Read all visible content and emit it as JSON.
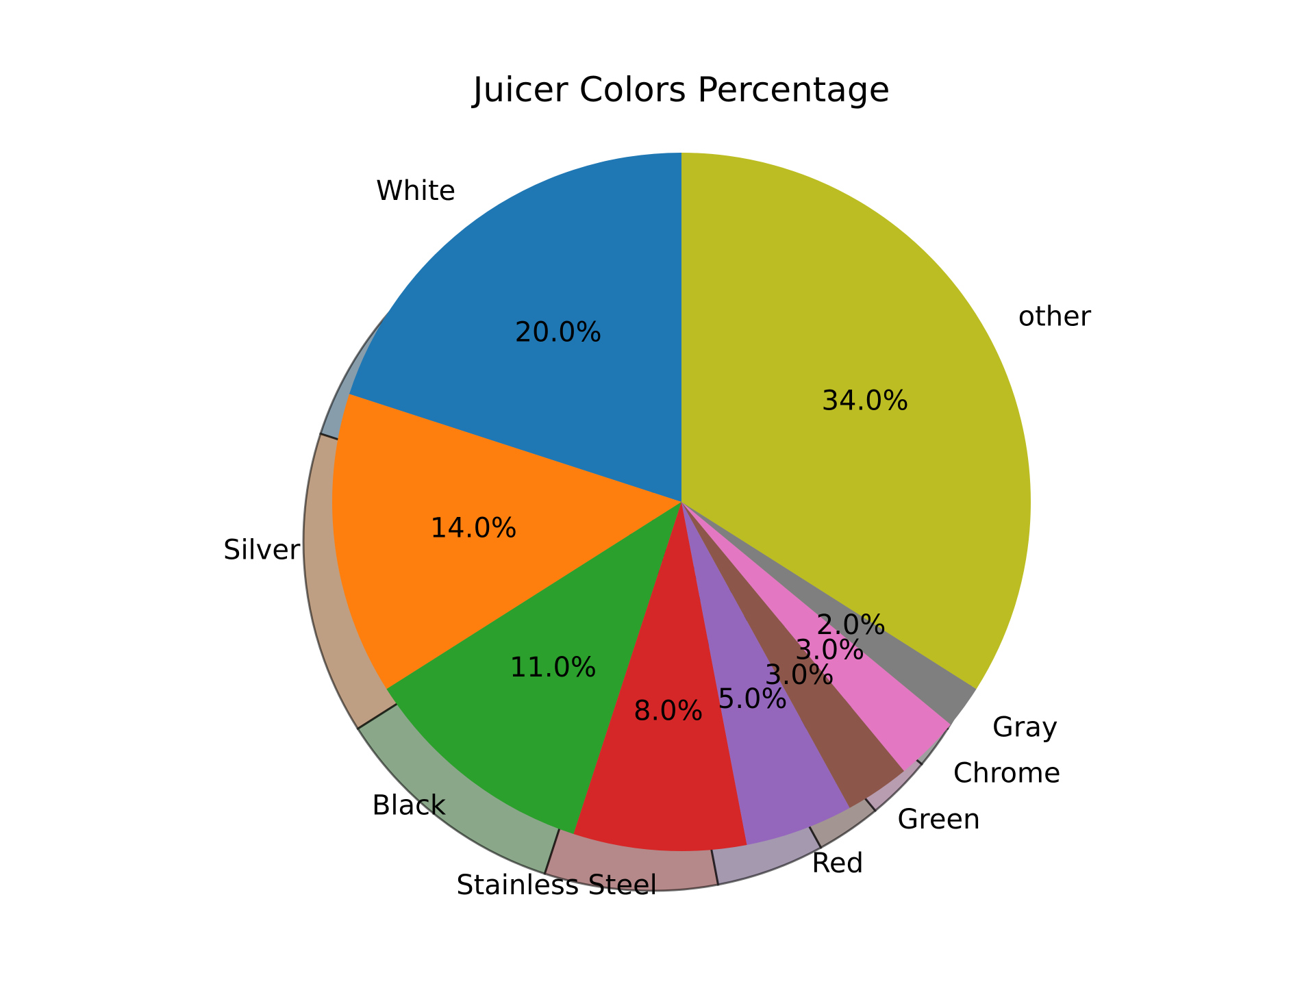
{
  "chart_data": {
    "type": "pie",
    "title": "Juicer Colors Percentage",
    "categories": [
      "White",
      "Silver",
      "Black",
      "Stainless Steel",
      "Red",
      "Green",
      "Chrome",
      "Gray",
      "other"
    ],
    "values": [
      20.0,
      14.0,
      11.0,
      8.0,
      5.0,
      3.0,
      3.0,
      2.0,
      34.0
    ],
    "percent_labels": [
      "20.0%",
      "14.0%",
      "11.0%",
      "8.0%",
      "5.0%",
      "3.0%",
      "3.0%",
      "2.0%",
      "34.0%"
    ],
    "colors": [
      "#1f77b4",
      "#ff7f0e",
      "#2ca02c",
      "#d62728",
      "#9467bd",
      "#8c564b",
      "#e377c2",
      "#7f7f7f",
      "#bcbd22"
    ],
    "start_angle_deg": 90,
    "direction": "counterclockwise",
    "shadow": true
  }
}
